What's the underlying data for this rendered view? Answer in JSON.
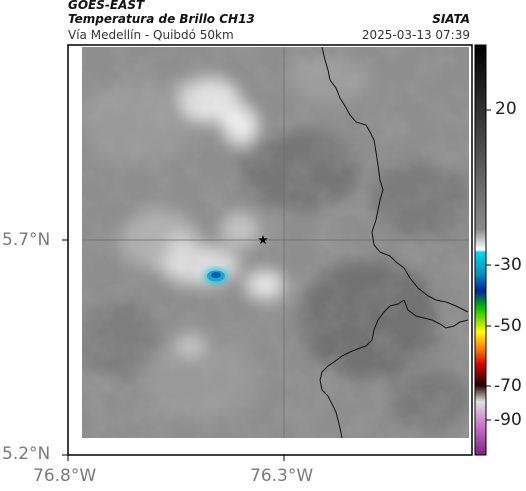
{
  "header": {
    "satellite": "GOES-EAST",
    "product": "Temperatura de Brillo CH13",
    "agency": "SIATA",
    "region": "Vía Medellín - Quibdó 50km",
    "timestamp": "2025-03-13 07:39"
  },
  "map": {
    "lat_labels": [
      "5.7°N",
      "5.2°N"
    ],
    "lon_labels": [
      "76.8°W",
      "76.3°W"
    ],
    "marker": "star-icon"
  },
  "colorbar": {
    "tick_labels": [
      "20",
      "-30",
      "-50",
      "-70",
      "-90"
    ],
    "colors": {
      "warm_top": "#000000",
      "warm_mid": "#808080",
      "warm_bottom": "#ffffff",
      "cyan": "#00c8e0",
      "blue": "#0020a0",
      "green": "#00c000",
      "yellow": "#ffff00",
      "red": "#d00000",
      "dark": "#200000",
      "purple": "#a020a0"
    }
  }
}
